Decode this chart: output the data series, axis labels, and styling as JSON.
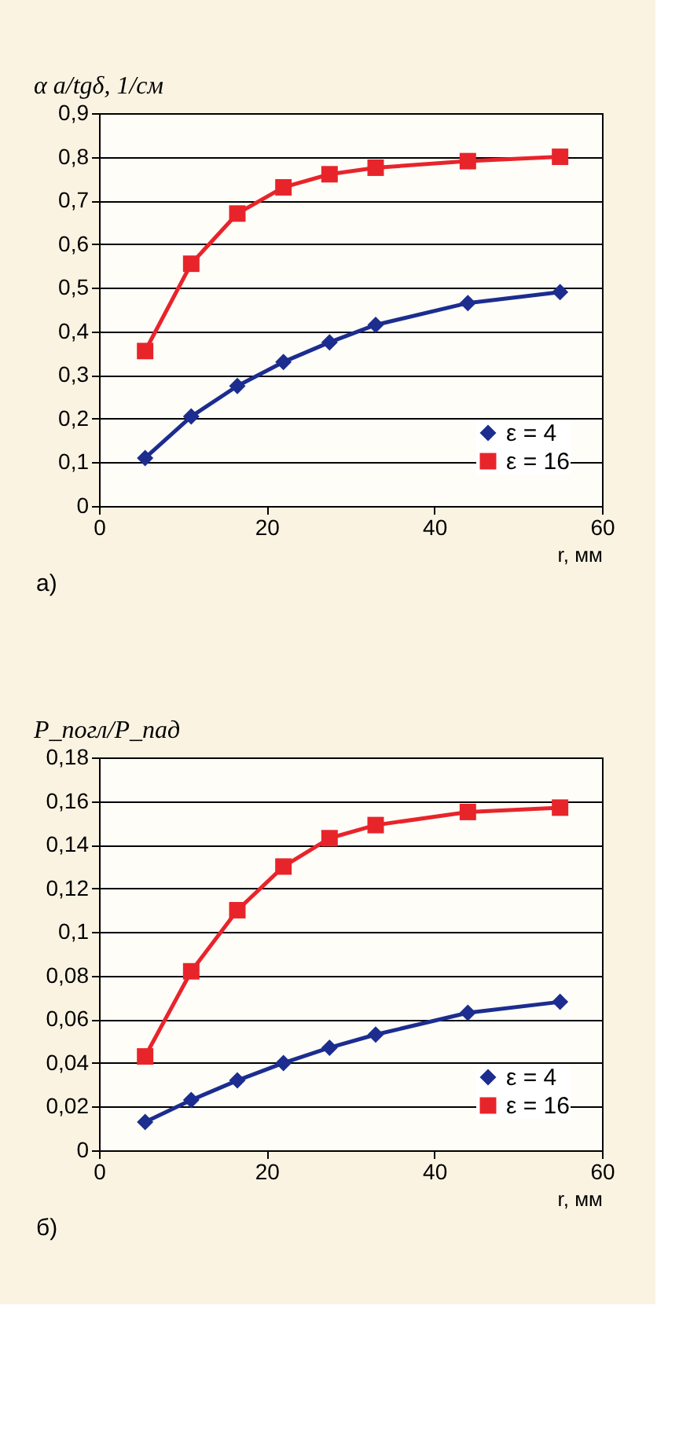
{
  "chart_data": [
    {
      "type": "line",
      "xlabel": "r, мм",
      "ylabel": "α a/tgδ, 1/см",
      "xlim": [
        0,
        60
      ],
      "xticks": [
        0,
        20,
        40,
        60
      ],
      "ylim": [
        0,
        0.9
      ],
      "yticks": [
        {
          "value": 0,
          "label": "0"
        },
        {
          "value": 0.1,
          "label": "0,1"
        },
        {
          "value": 0.2,
          "label": "0,2"
        },
        {
          "value": 0.3,
          "label": "0,3"
        },
        {
          "value": 0.4,
          "label": "0,4"
        },
        {
          "value": 0.5,
          "label": "0,5"
        },
        {
          "value": 0.6,
          "label": "0,6"
        },
        {
          "value": 0.7,
          "label": "0,7"
        },
        {
          "value": 0.8,
          "label": "0,8"
        },
        {
          "value": 0.9,
          "label": "0,9"
        }
      ],
      "grid": "y",
      "legend": "bottom right",
      "line_style": "solid",
      "annotations": [
        "а)"
      ],
      "x": [
        5.5,
        11,
        16.5,
        22,
        27.5,
        33,
        44,
        55
      ],
      "series": [
        {
          "name": "ε = 4",
          "color": "#1c2d8f",
          "marker": "diamond",
          "values": [
            0.11,
            0.205,
            0.275,
            0.33,
            0.375,
            0.415,
            0.465,
            0.49
          ]
        },
        {
          "name": "ε = 16",
          "color": "#e8242b",
          "marker": "square",
          "values": [
            0.355,
            0.555,
            0.67,
            0.73,
            0.76,
            0.775,
            0.79,
            0.8
          ]
        }
      ]
    },
    {
      "type": "line",
      "xlabel": "r, мм",
      "ylabel": "P_погл/P_пад",
      "xlim": [
        0,
        60
      ],
      "xticks": [
        0,
        20,
        40,
        60
      ],
      "ylim": [
        0,
        0.18
      ],
      "yticks": [
        {
          "value": 0,
          "label": "0"
        },
        {
          "value": 0.02,
          "label": "0,02"
        },
        {
          "value": 0.04,
          "label": "0,04"
        },
        {
          "value": 0.06,
          "label": "0,06"
        },
        {
          "value": 0.08,
          "label": "0,08"
        },
        {
          "value": 0.1,
          "label": "0,1"
        },
        {
          "value": 0.12,
          "label": "0,12"
        },
        {
          "value": 0.14,
          "label": "0,14"
        },
        {
          "value": 0.16,
          "label": "0,16"
        },
        {
          "value": 0.18,
          "label": "0,18"
        }
      ],
      "grid": "y",
      "legend": "bottom right",
      "line_style": "solid",
      "annotations": [
        "б)"
      ],
      "x": [
        5.5,
        11,
        16.5,
        22,
        27.5,
        33,
        44,
        55
      ],
      "series": [
        {
          "name": "ε = 4",
          "color": "#1c2d8f",
          "marker": "diamond",
          "values": [
            0.013,
            0.023,
            0.032,
            0.04,
            0.047,
            0.053,
            0.063,
            0.068
          ]
        },
        {
          "name": "ε = 16",
          "color": "#e8242b",
          "marker": "square",
          "values": [
            0.043,
            0.082,
            0.11,
            0.13,
            0.143,
            0.149,
            0.155,
            0.157
          ]
        }
      ]
    }
  ]
}
